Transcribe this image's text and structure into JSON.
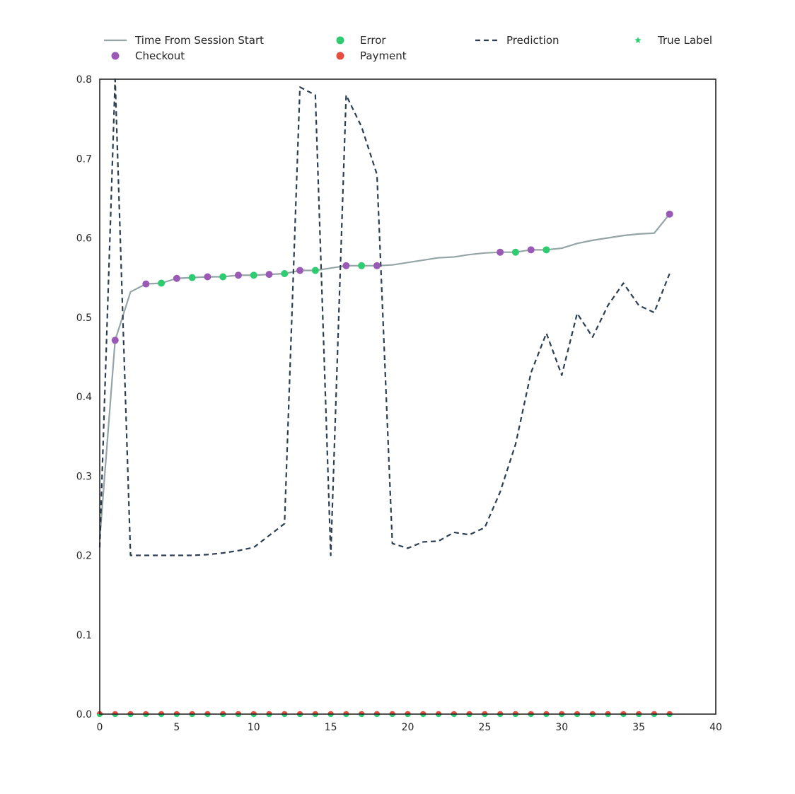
{
  "chart_data": {
    "type": "line",
    "xlim": [
      0,
      40
    ],
    "ylim": [
      0,
      0.8
    ],
    "x_ticks": [
      0,
      5,
      10,
      15,
      20,
      25,
      30,
      35,
      40
    ],
    "y_ticks": [
      0.0,
      0.1,
      0.2,
      0.3,
      0.4,
      0.5,
      0.6,
      0.7,
      0.8
    ],
    "x_tick_labels": [
      "0",
      "5",
      "10",
      "15",
      "20",
      "25",
      "30",
      "35",
      "40"
    ],
    "y_tick_labels": [
      "0.0",
      "0.1",
      "0.2",
      "0.3",
      "0.4",
      "0.5",
      "0.6",
      "0.7",
      "0.8"
    ],
    "grid": false,
    "legend_position": "top",
    "legend": [
      {
        "label": "Time From Session Start",
        "kind": "line",
        "color": "#95a5a6"
      },
      {
        "label": "Error",
        "kind": "marker",
        "color": "#2ecc71"
      },
      {
        "label": "Prediction",
        "kind": "dashed",
        "color": "#2c3e50"
      },
      {
        "label": "True Label",
        "kind": "star",
        "color": "#2ecc71"
      },
      {
        "label": "Checkout",
        "kind": "marker",
        "color": "#9b59b6"
      },
      {
        "label": "Payment",
        "kind": "marker",
        "color": "#e74c3c"
      }
    ],
    "x": [
      0,
      1,
      2,
      3,
      4,
      5,
      6,
      7,
      8,
      9,
      10,
      11,
      12,
      13,
      14,
      15,
      16,
      17,
      18,
      19,
      20,
      21,
      22,
      23,
      24,
      25,
      26,
      27,
      28,
      29,
      30,
      31,
      32,
      33,
      34,
      35,
      36,
      37
    ],
    "series": [
      {
        "name": "Time From Session Start",
        "style": "solid",
        "color": "#95a5a6",
        "values": [
          0.22,
          0.471,
          0.532,
          0.542,
          0.543,
          0.549,
          0.55,
          0.551,
          0.551,
          0.553,
          0.553,
          0.554,
          0.555,
          0.559,
          0.559,
          0.562,
          0.565,
          0.565,
          0.565,
          0.566,
          0.569,
          0.572,
          0.575,
          0.576,
          0.579,
          0.581,
          0.582,
          0.582,
          0.585,
          0.585,
          0.587,
          0.593,
          0.597,
          0.6,
          0.603,
          0.605,
          0.606,
          0.63
        ]
      },
      {
        "name": "Prediction",
        "style": "dashed",
        "color": "#2c3e50",
        "values": [
          0.21,
          0.8,
          0.2,
          0.2,
          0.2,
          0.2,
          0.2,
          0.201,
          0.203,
          0.206,
          0.21,
          0.225,
          0.24,
          0.79,
          0.78,
          0.2,
          0.78,
          0.74,
          0.68,
          0.215,
          0.209,
          0.217,
          0.218,
          0.229,
          0.226,
          0.235,
          0.28,
          0.34,
          0.43,
          0.48,
          0.427,
          0.505,
          0.475,
          0.515,
          0.543,
          0.515,
          0.506,
          0.555
        ]
      }
    ],
    "event_markers": [
      {
        "x": 1,
        "type": "Checkout"
      },
      {
        "x": 3,
        "type": "Checkout"
      },
      {
        "x": 4,
        "type": "Error"
      },
      {
        "x": 5,
        "type": "Checkout"
      },
      {
        "x": 6,
        "type": "Error"
      },
      {
        "x": 7,
        "type": "Checkout"
      },
      {
        "x": 8,
        "type": "Error"
      },
      {
        "x": 9,
        "type": "Checkout"
      },
      {
        "x": 10,
        "type": "Error"
      },
      {
        "x": 11,
        "type": "Checkout"
      },
      {
        "x": 12,
        "type": "Error"
      },
      {
        "x": 13,
        "type": "Checkout"
      },
      {
        "x": 14,
        "type": "Error"
      },
      {
        "x": 16,
        "type": "Checkout"
      },
      {
        "x": 17,
        "type": "Error"
      },
      {
        "x": 18,
        "type": "Checkout"
      },
      {
        "x": 26,
        "type": "Checkout"
      },
      {
        "x": 27,
        "type": "Error"
      },
      {
        "x": 28,
        "type": "Checkout"
      },
      {
        "x": 29,
        "type": "Error"
      },
      {
        "x": 37,
        "type": "Checkout"
      }
    ],
    "payment_baseline": {
      "y": 0.0,
      "x": [
        0,
        1,
        2,
        3,
        4,
        5,
        6,
        7,
        8,
        9,
        10,
        11,
        12,
        13,
        14,
        15,
        16,
        17,
        18,
        19,
        20,
        21,
        22,
        23,
        24,
        25,
        26,
        27,
        28,
        29,
        30,
        31,
        32,
        33,
        34,
        35,
        36,
        37
      ],
      "color": "#e74c3c",
      "under_color": "#2ecc71"
    }
  }
}
